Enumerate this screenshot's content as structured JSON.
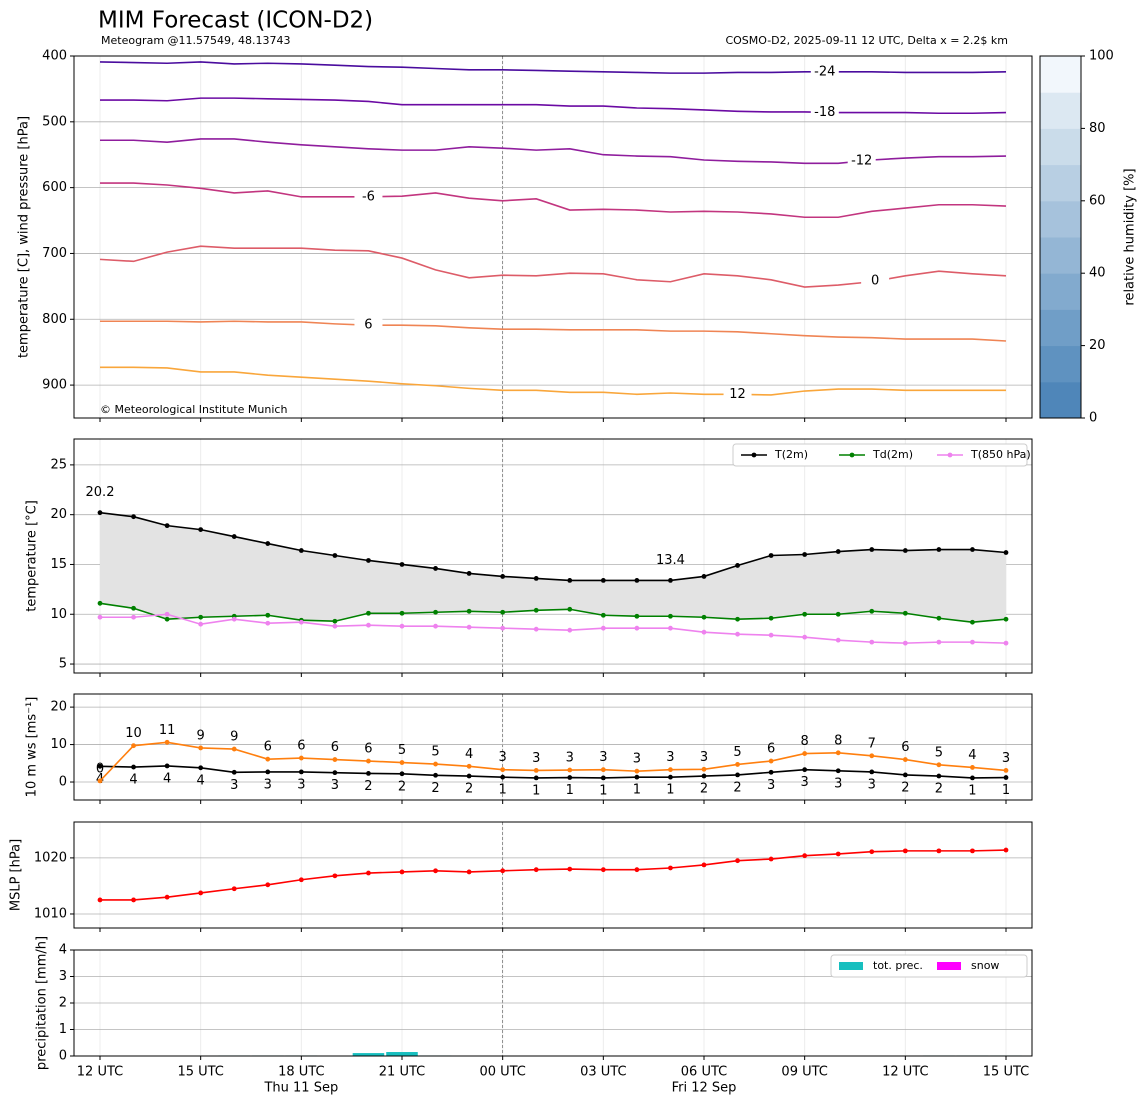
{
  "chart_data": [
    {
      "type": "line",
      "title": "MIM Forecast (ICON-D2)",
      "subtitle": "Meteogram @11.57549, 48.13743",
      "source": "COSMO-D2, 2025-09-11 12 UTC, Delta x = 2.2$ km",
      "credit": "© Meteorological Institute Munich",
      "ylabel": "temperature [C], wind pressure [hPa]",
      "ylim": [
        950,
        400
      ],
      "yticks": [
        400,
        500,
        600,
        700,
        800,
        900
      ],
      "grid": true,
      "series": [
        {
          "name": "-24",
          "color": "#4a0c9e",
          "values": [
            409,
            410,
            411,
            409,
            412,
            411,
            412,
            414,
            416,
            417,
            419,
            421,
            421,
            422,
            423,
            424,
            425,
            426,
            426,
            425,
            425,
            424,
            424,
            424,
            425,
            425,
            425,
            424
          ]
        },
        {
          "name": "-18",
          "color": "#6b0aa3",
          "values": [
            467,
            467,
            468,
            464,
            464,
            465,
            466,
            467,
            469,
            474,
            474,
            474,
            474,
            474,
            476,
            476,
            479,
            480,
            482,
            484,
            485,
            485,
            486,
            486,
            486,
            487,
            487,
            486
          ]
        },
        {
          "name": "-12",
          "color": "#8f1d9d",
          "values": [
            528,
            528,
            531,
            526,
            526,
            531,
            535,
            538,
            541,
            543,
            543,
            538,
            540,
            543,
            541,
            550,
            552,
            553,
            558,
            560,
            561,
            563,
            563,
            558,
            555,
            553,
            553,
            552
          ]
        },
        {
          "name": "-6",
          "color": "#c2357f",
          "values": [
            593,
            593,
            596,
            601,
            608,
            605,
            614,
            614,
            614,
            613,
            608,
            616,
            620,
            617,
            634,
            633,
            634,
            637,
            636,
            637,
            640,
            645,
            645,
            636,
            631,
            626,
            626,
            628
          ]
        },
        {
          "name": "0",
          "color": "#dd5c68",
          "values": [
            709,
            712,
            698,
            689,
            692,
            692,
            692,
            695,
            696,
            707,
            725,
            737,
            733,
            734,
            730,
            731,
            740,
            743,
            731,
            734,
            740,
            751,
            748,
            743,
            734,
            727,
            731,
            734
          ]
        },
        {
          "name": "6",
          "color": "#ef8454",
          "values": [
            803,
            803,
            803,
            804,
            803,
            804,
            804,
            807,
            809,
            809,
            810,
            813,
            815,
            815,
            816,
            816,
            816,
            818,
            818,
            819,
            822,
            825,
            827,
            828,
            830,
            830,
            830,
            833
          ]
        },
        {
          "name": "12",
          "color": "#f9a63b",
          "values": [
            873,
            873,
            874,
            880,
            880,
            885,
            888,
            891,
            894,
            898,
            901,
            905,
            908,
            908,
            911,
            911,
            914,
            912,
            914,
            914,
            915,
            909,
            906,
            906,
            908,
            908,
            908,
            908
          ]
        }
      ],
      "colorbar": {
        "label": "relative humidity [%]",
        "lim": [
          0,
          100
        ],
        "ticks": [
          0,
          20,
          40,
          60,
          80,
          100
        ],
        "colors": [
          "#4f86b9",
          "#5f92c0",
          "#709ec7",
          "#82aace",
          "#94b6d5",
          "#a6c2dc",
          "#b8cfe3",
          "#cadcea",
          "#dce8f2",
          "#f2f7fc"
        ]
      }
    },
    {
      "type": "line",
      "ylabel": "temperature [°C]",
      "ylim": [
        4.1,
        27.6
      ],
      "yticks": [
        5,
        10,
        15,
        20,
        25
      ],
      "grid": true,
      "legend": "upper right",
      "fill_between": "#e3e3e3",
      "series": [
        {
          "name": "T(2m)",
          "color": "#000000",
          "values": [
            20.2,
            19.8,
            18.9,
            18.5,
            17.8,
            17.1,
            16.4,
            15.9,
            15.4,
            15.0,
            14.6,
            14.1,
            13.8,
            13.6,
            13.4,
            13.4,
            13.4,
            13.4,
            13.8,
            14.9,
            15.9,
            16.0,
            16.3,
            16.5,
            16.4,
            16.5,
            16.5,
            16.2
          ]
        },
        {
          "name": "Td(2m)",
          "color": "#008000",
          "values": [
            11.1,
            10.6,
            9.5,
            9.7,
            9.8,
            9.9,
            9.4,
            9.3,
            10.1,
            10.1,
            10.2,
            10.3,
            10.2,
            10.4,
            10.5,
            9.9,
            9.8,
            9.8,
            9.7,
            9.5,
            9.6,
            10.0,
            10.0,
            10.3,
            10.1,
            9.6,
            9.2,
            9.5
          ]
        },
        {
          "name": "T(850 hPa)",
          "color": "#ee82ee",
          "values": [
            9.7,
            9.7,
            10.0,
            9.0,
            9.5,
            9.1,
            9.2,
            8.8,
            8.9,
            8.8,
            8.8,
            8.7,
            8.6,
            8.5,
            8.4,
            8.6,
            8.6,
            8.6,
            8.2,
            8.0,
            7.9,
            7.7,
            7.4,
            7.2,
            7.1,
            7.2,
            7.2,
            7.1
          ]
        }
      ],
      "annotations": [
        {
          "text": "20.2",
          "color": "#ff0000",
          "at": "max"
        },
        {
          "text": "13.4",
          "color": "#0000ff",
          "at": "min"
        }
      ]
    },
    {
      "type": "line",
      "ylabel": "10 m ws [ms⁻¹]",
      "ylim": [
        -4.8,
        23.5
      ],
      "yticks": [
        0,
        10,
        20
      ],
      "grid": true,
      "series": [
        {
          "color": "#000000",
          "values": [
            4.2,
            4.0,
            4.3,
            3.8,
            2.6,
            2.7,
            2.7,
            2.5,
            2.3,
            2.2,
            1.8,
            1.6,
            1.3,
            1.1,
            1.2,
            1.1,
            1.3,
            1.3,
            1.6,
            1.9,
            2.6,
            3.3,
            3.0,
            2.7,
            1.9,
            1.6,
            1.1,
            1.2
          ],
          "value_labels": [
            "4",
            "4",
            "4",
            "4",
            "3",
            "3",
            "3",
            "3",
            "2",
            "2",
            "2",
            "2",
            "1",
            "1",
            "1",
            "1",
            "1",
            "1",
            "2",
            "2",
            "3",
            "3",
            "3",
            "3",
            "2",
            "2",
            "1",
            "1"
          ]
        },
        {
          "color": "#ff7f0e",
          "values": [
            0.3,
            9.7,
            10.6,
            9.1,
            8.8,
            6.1,
            6.4,
            6.0,
            5.6,
            5.2,
            4.8,
            4.2,
            3.3,
            3.1,
            3.2,
            3.3,
            2.9,
            3.3,
            3.4,
            4.7,
            5.6,
            7.6,
            7.8,
            7.0,
            6.0,
            4.6,
            3.9,
            3.1
          ],
          "value_labels": [
            "0",
            "10",
            "11",
            "9",
            "9",
            "6",
            "6",
            "6",
            "6",
            "5",
            "5",
            "4",
            "3",
            "3",
            "3",
            "3",
            "3",
            "3",
            "3",
            "5",
            "6",
            "8",
            "8",
            "7",
            "6",
            "5",
            "4",
            "3"
          ]
        }
      ]
    },
    {
      "type": "line",
      "ylabel": "MSLP [hPa]",
      "ylim": [
        1007.5,
        1026.4
      ],
      "yticks": [
        1010,
        1020
      ],
      "grid": true,
      "series": [
        {
          "color": "#ff0000",
          "values": [
            1012.5,
            1012.5,
            1013.0,
            1013.75,
            1014.5,
            1015.2,
            1016.1,
            1016.8,
            1017.3,
            1017.5,
            1017.7,
            1017.5,
            1017.7,
            1017.9,
            1018.0,
            1017.9,
            1017.9,
            1018.2,
            1018.75,
            1019.5,
            1019.8,
            1020.4,
            1020.7,
            1021.1,
            1021.25,
            1021.25,
            1021.25,
            1021.4
          ]
        }
      ]
    },
    {
      "type": "bar",
      "ylabel": "precipitation [mm/h]",
      "ylim": [
        0,
        4
      ],
      "yticks": [
        0,
        1,
        2,
        3,
        4
      ],
      "grid": true,
      "legend": "upper right",
      "categories": [
        "12 UTC",
        null,
        null,
        "15 UTC",
        null,
        null,
        "18 UTC",
        null,
        null,
        "21 UTC",
        null,
        null,
        "00 UTC",
        null,
        null,
        "03 UTC",
        null,
        null,
        "06 UTC",
        null,
        null,
        "09 UTC",
        null,
        null,
        "12 UTC",
        null,
        null,
        "15 UTC"
      ],
      "dates": [
        null,
        null,
        null,
        null,
        null,
        null,
        "Thu 11 Sep",
        null,
        null,
        null,
        null,
        null,
        null,
        null,
        null,
        null,
        null,
        null,
        "Fri 12 Sep",
        null,
        null,
        null,
        null,
        null,
        null,
        null,
        null,
        null
      ],
      "series": [
        {
          "name": "tot. prec.",
          "color": "#17bfbf",
          "values": [
            0,
            0,
            0,
            0,
            0.02,
            0.02,
            0.02,
            0,
            0.11,
            0.15,
            0.02,
            0,
            0,
            0,
            0,
            0,
            0,
            0,
            0,
            0,
            0,
            0,
            0,
            0,
            0,
            0.02,
            0.02,
            0.02
          ]
        },
        {
          "name": "snow",
          "color": "#ff00ff",
          "values": [
            0,
            0,
            0,
            0,
            0,
            0,
            0,
            0,
            0,
            0,
            0,
            0,
            0,
            0,
            0,
            0,
            0,
            0,
            0,
            0,
            0,
            0,
            0,
            0,
            0,
            0,
            0,
            0
          ]
        }
      ]
    }
  ]
}
